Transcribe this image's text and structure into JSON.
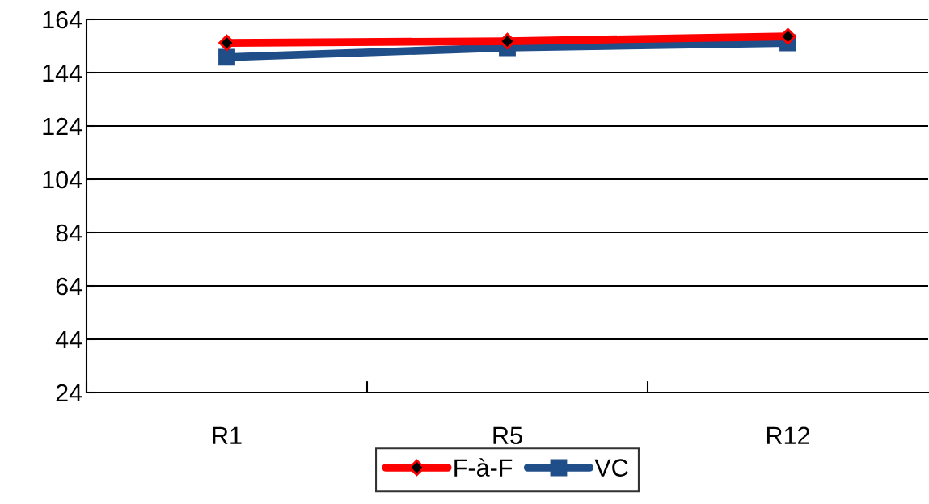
{
  "chart_data": {
    "type": "line",
    "categories": [
      "R1",
      "R5",
      "R12"
    ],
    "series": [
      {
        "name": "F-à-F",
        "color": "#ff0000",
        "values": [
          155.2,
          155.8,
          157.6
        ],
        "marker": "diamond"
      },
      {
        "name": "VC",
        "color": "#1f4e89",
        "values": [
          149.8,
          153.4,
          155.2
        ],
        "marker": "square"
      }
    ],
    "ylim": [
      24,
      164
    ],
    "yticks": [
      24,
      44,
      64,
      84,
      104,
      124,
      144,
      164
    ],
    "grid": "y",
    "legend": "bottom",
    "line_style": "solid"
  }
}
